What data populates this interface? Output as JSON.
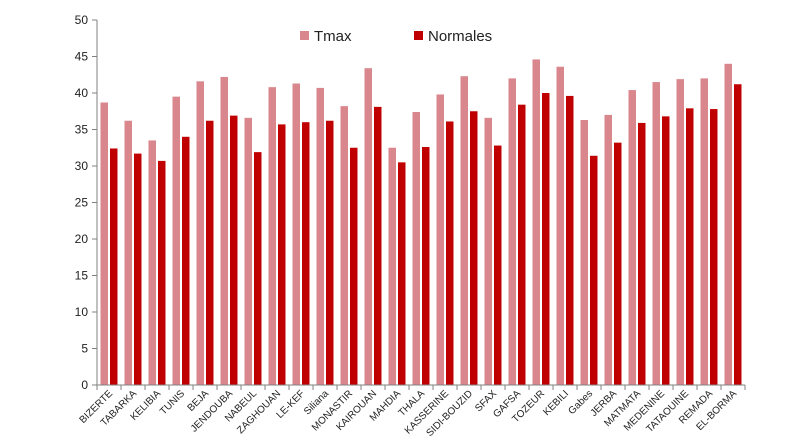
{
  "chart_data": {
    "type": "bar",
    "categories": [
      "BIZERTE",
      "TABARKA",
      "KELIBIA",
      "TUNIS",
      "BEJA",
      "JENDOUBA",
      "NABEUL",
      "ZAGHOUAN",
      "LE-KEF",
      "Siliana",
      "MONASTIR",
      "KAIROUAN",
      "MAHDIA",
      "THALA",
      "KASSERINE",
      "SIDI-BOUZID",
      "SFAX",
      "GAFSA",
      "TOZEUR",
      "KEBILI",
      "Gabes",
      "JERBA",
      "MATMATA",
      "MEDENINE",
      "TATAOUINE",
      "REMADA",
      "EL-BORMA"
    ],
    "series": [
      {
        "name": "Tmax",
        "color": "#D9868C",
        "values": [
          38.7,
          36.2,
          33.5,
          39.5,
          41.6,
          42.2,
          36.6,
          40.8,
          41.3,
          40.7,
          38.2,
          43.4,
          32.5,
          37.4,
          39.8,
          42.3,
          36.6,
          42.0,
          44.6,
          43.6,
          36.3,
          37.0,
          40.4,
          41.5,
          41.9,
          42.0,
          44.0
        ]
      },
      {
        "name": "Normales",
        "color": "#C00000",
        "values": [
          32.4,
          31.7,
          30.7,
          34.0,
          36.2,
          36.9,
          31.9,
          35.7,
          36.0,
          36.2,
          32.5,
          38.1,
          30.5,
          32.6,
          36.1,
          37.5,
          32.8,
          38.4,
          40.0,
          39.6,
          31.4,
          33.2,
          35.9,
          36.8,
          37.9,
          37.8,
          41.2
        ]
      }
    ],
    "ylim": [
      0,
      50
    ],
    "yticks": [
      "0",
      "5",
      "10",
      "15",
      "20",
      "25",
      "30",
      "35",
      "40",
      "45",
      "50"
    ],
    "xlabel": "",
    "ylabel": "",
    "title": "",
    "grid": false,
    "legend": "top-center"
  }
}
